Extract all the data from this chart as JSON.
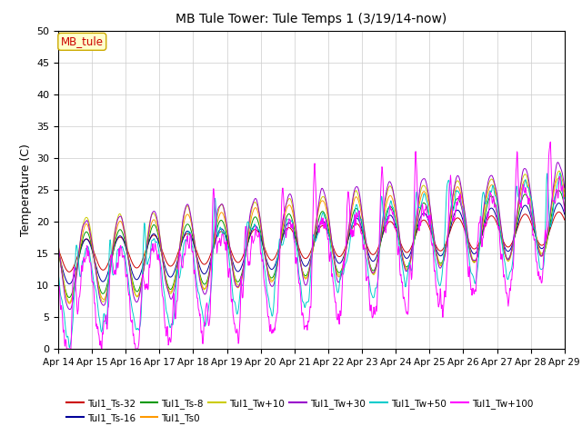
{
  "title": "MB Tule Tower: Tule Temps 1 (3/19/14-now)",
  "ylabel": "Temperature (C)",
  "ylim": [
    0,
    50
  ],
  "yticks": [
    0,
    5,
    10,
    15,
    20,
    25,
    30,
    35,
    40,
    45,
    50
  ],
  "xtick_labels": [
    "Apr 14",
    "Apr 15",
    "Apr 16",
    "Apr 17",
    "Apr 18",
    "Apr 19",
    "Apr 20",
    "Apr 21",
    "Apr 22",
    "Apr 23",
    "Apr 24",
    "Apr 25",
    "Apr 26",
    "Apr 27",
    "Apr 28",
    "Apr 29"
  ],
  "legend_label": "MB_tule",
  "series_colors": {
    "Tul1_Ts-32": "#cc0000",
    "Tul1_Ts-16": "#000099",
    "Tul1_Ts-8": "#009900",
    "Tul1_Ts0": "#ff9900",
    "Tul1_Tw+10": "#cccc00",
    "Tul1_Tw+30": "#9900cc",
    "Tul1_Tw+50": "#00cccc",
    "Tul1_Tw+100": "#ff00ff"
  },
  "background_color": "#ffffff",
  "grid_color": "#cccccc",
  "legend_row1": [
    "Tul1_Ts-32",
    "Tul1_Ts-16",
    "Tul1_Ts-8",
    "Tul1_Ts0",
    "Tul1_Tw+10",
    "Tul1_Tw+30"
  ],
  "legend_row2": [
    "Tul1_Tw+50",
    "Tul1_Tw+100"
  ]
}
